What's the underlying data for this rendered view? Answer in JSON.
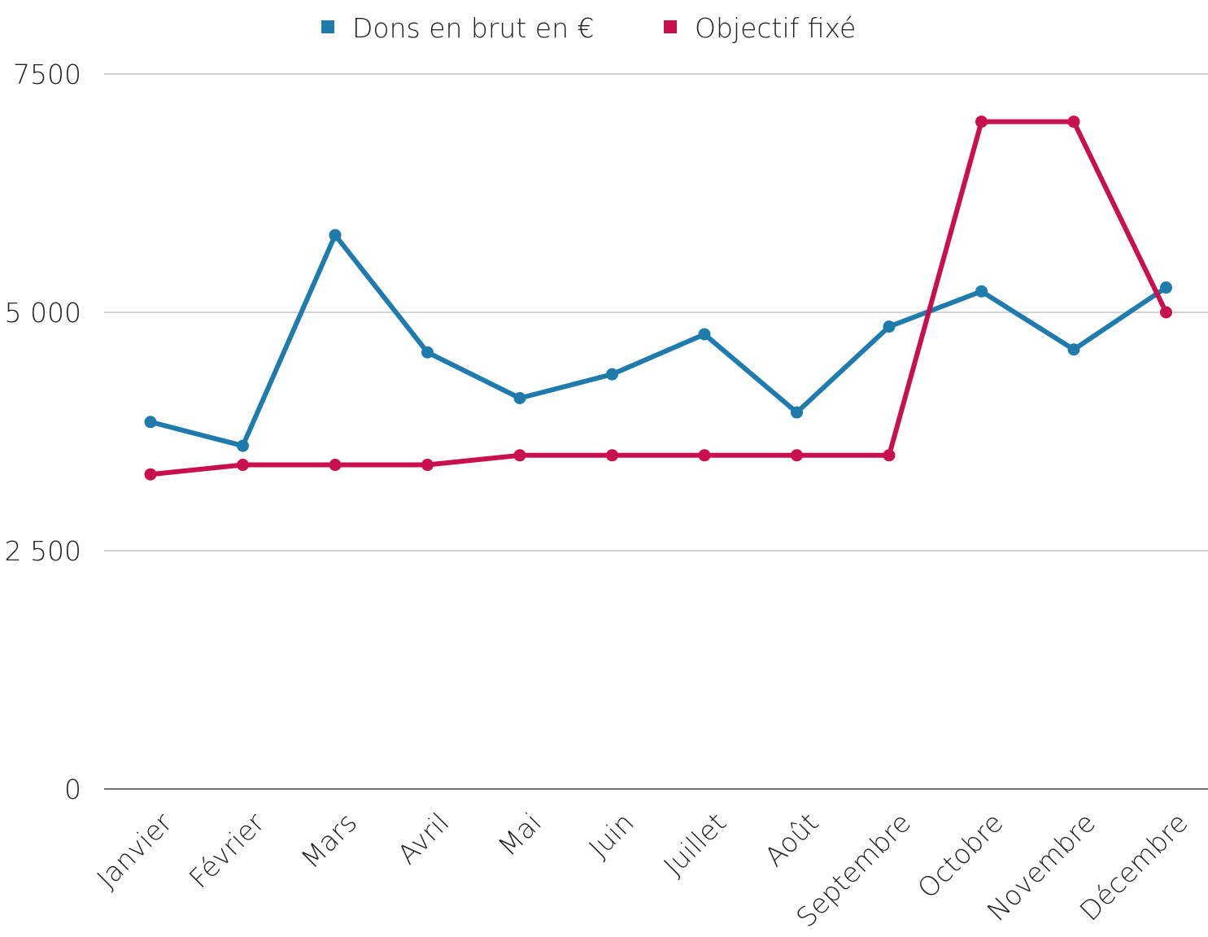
{
  "chart_data": {
    "type": "line",
    "categories": [
      "Janvier",
      "Février",
      "Mars",
      "Avril",
      "Mai",
      "Juin",
      "Juillet",
      "Août",
      "Septembre",
      "Octobre",
      "Novembre",
      "Décembre"
    ],
    "series": [
      {
        "name": "Dons en brut en €",
        "color": "#1f7bab",
        "values": [
          3850,
          3600,
          5810,
          4580,
          4100,
          4350,
          4770,
          3950,
          4850,
          5220,
          4610,
          5260
        ]
      },
      {
        "name": "Objectif fixé",
        "color": "#c8104e",
        "values": [
          3300,
          3400,
          3400,
          3400,
          3500,
          3500,
          3500,
          3500,
          3500,
          7000,
          7000,
          5000
        ]
      }
    ],
    "ylim": [
      0,
      7500
    ],
    "yticks": [
      0,
      {
        "value": 2500,
        "label": "2 500"
      },
      {
        "value": 5000,
        "label": "5 000"
      },
      7500
    ],
    "grid": true,
    "legend": "top"
  }
}
